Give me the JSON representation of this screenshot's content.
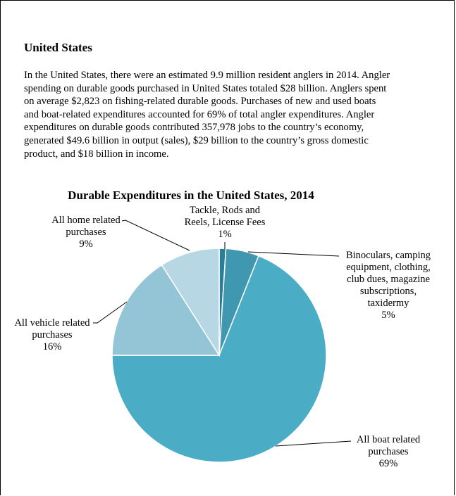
{
  "document": {
    "heading": "United States",
    "paragraph_lines": [
      "In the United States, there were an estimated 9.9 million resident anglers in 2014. Angler",
      "spending on durable goods purchased in United States totaled $28 billion.  Anglers spent",
      "on average $2,823 on fishing-related durable goods.  Purchases of new and used boats",
      "and boat-related expenditures accounted for 69% of total angler expenditures.  Angler",
      "expenditures on durable goods contributed 357,978 jobs to the country’s economy,",
      "generated $49.6 billion in output (sales), $29 billion to the country’s gross domestic",
      "product, and $18 billion in income."
    ]
  },
  "chart_data": {
    "type": "pie",
    "title": "Durable Expenditures in the United States, 2014",
    "start_angle_deg": 0,
    "direction": "clockwise",
    "slices": [
      {
        "name": "Tackle, Rods and Reels, License Fees",
        "label_lines": [
          "Tackle, Rods and",
          "Reels, License Fees",
          "1%"
        ],
        "value": 1,
        "color": "#2b7e96"
      },
      {
        "name": "Binoculars, camping equipment, clothing, club dues, magazine subscriptions, taxidermy",
        "label_lines": [
          "Binoculars, camping",
          "equipment, clothing,",
          "club dues, magazine",
          "subscriptions,",
          "taxidermy",
          "5%"
        ],
        "value": 5,
        "color": "#4098b0"
      },
      {
        "name": "All boat related purchases",
        "label_lines": [
          "All boat related",
          "purchases",
          "69%"
        ],
        "value": 69,
        "color": "#4bacc6"
      },
      {
        "name": "All vehicle related purchases",
        "label_lines": [
          "All vehicle related",
          "purchases",
          "16%"
        ],
        "value": 16,
        "color": "#93c5d6"
      },
      {
        "name": "All home related purchases",
        "label_lines": [
          "All home related",
          "purchases",
          "9%"
        ],
        "value": 9,
        "color": "#b8d7e4"
      }
    ]
  }
}
